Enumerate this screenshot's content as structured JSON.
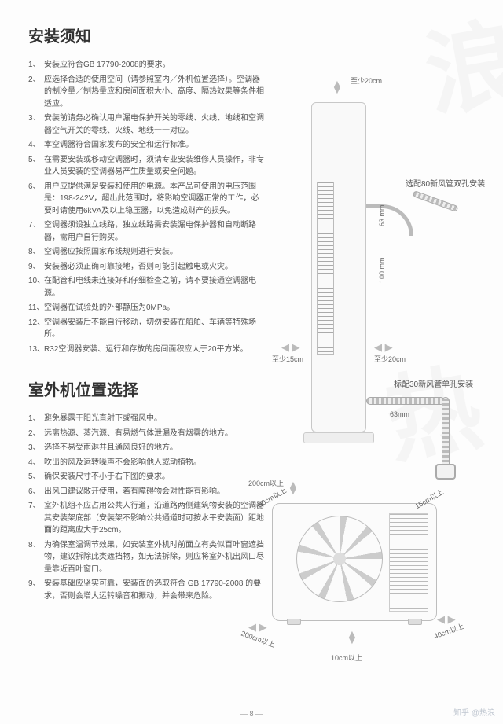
{
  "page_number": "— 8 —",
  "watermark": "知乎 @热浪",
  "bg_watermark_chars": [
    "浪",
    "热"
  ],
  "section1": {
    "title": "安装须知",
    "items": [
      "安装应符合GB 17790-2008的要求。",
      "应选择合适的使用空间（请参照室内／外机位置选择）。空调器的制冷量／制热量应和房间面积大小、高度、隔热效果等条件相适应。",
      "安装前请务必确认用户漏电保护开关的零线、火线、地线和空调器空气开关的零线、火线、地线一一对应。",
      "本空调器符合国家发布的安全和运行标准。",
      "在需要安装或移动空调器时，须请专业安装维修人员操作，非专业人员安装的空调器易产生质量或安全问题。",
      "用户应提供满足安装和使用的电源。本产品可使用的电压范围是：198-242V，超出此范围时，将影响空调器正常的工作，必要时请使用6kVA及以上稳压器，以免造成财产的损失。",
      "空调器须设独立线路，独立线路需安装漏电保护器和自动断路器，需用户自行购买。",
      "空调器应按照国家布线规则进行安装。",
      "安装器必须正确可靠接地，否则可能引起触电或火灾。",
      "在配管和电线未连接好和仔细检查之前，请不要接通空调器电源。",
      "空调器在试验处的外部静压为0MPa。",
      "空调器安装后不能自行移动，切勿安装在船舶、车辆等特殊场所。",
      "R32空调器安装、运行和存放的房间面积应大于20平方米。"
    ]
  },
  "section2": {
    "title": "室外机位置选择",
    "items": [
      "避免暴露于阳光直射下或强风中。",
      "远离热源、蒸汽源、有易燃气体泄漏及有烟雾的地方。",
      "选择不易受雨淋并且通风良好的地方。",
      "吹出的风及运转噪声不会影响他人或动植物。",
      "确保安装尺寸不小于右下图的要求。",
      "出风口建议敞开使用，若有障碍物会对性能有影响。",
      "室外机组不应占用公共人行道，沿道路两侧建筑物安装的空调器其安装架底部（安装架不影响公共通道时可按水平安装面）距地面的距离应大于25cm。",
      "为确保室温调节效果，如安装室外机时前面立有类似百叶窗遮挡物，建议拆除此类遮挡物，如无法拆除，则应将室外机出风口尽量靠近百叶窗口。",
      "安装基础应坚实可靠，安装面的选取符合 GB 17790-2008 的要求，否则会增大运转噪音和振动，并会带来危险。"
    ]
  },
  "diagram": {
    "indoor": {
      "top_clearance": "至少20cm",
      "side_clearance": "至少15cm",
      "bottom_clearance": "至少20cm",
      "top_hose_dim1": "63 mm",
      "top_hose_dim2": "100 mm",
      "bottom_hose_dim": "63mm",
      "label_top_hose": "选配80新风管双孔安装",
      "label_bottom_hose": "标配30新风管单孔安装"
    },
    "outdoor": {
      "front": "200cm以上",
      "back_left": "200cm以上",
      "left_diag": "30cm以上",
      "right_diag": "15cm以上",
      "right": "40cm以上",
      "below": "10cm以上"
    }
  }
}
